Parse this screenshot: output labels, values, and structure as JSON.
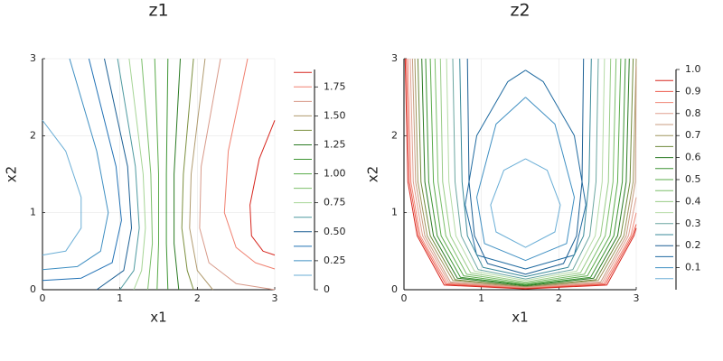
{
  "chart_data": [
    {
      "type": "contour",
      "title": "z1",
      "x_label": "x1",
      "y_label": "x2",
      "xlim": [
        0,
        3
      ],
      "ylim": [
        0,
        3
      ],
      "xticks": [
        0,
        1,
        2,
        3
      ],
      "yticks": [
        0,
        1,
        2,
        3
      ],
      "grid": true,
      "clim": [
        0,
        1.9
      ],
      "cticks": [
        0,
        {
          "value": 0.25,
          "label": "0.25"
        },
        {
          "value": 0.5,
          "label": "0.50"
        },
        {
          "value": 0.75,
          "label": "0.75"
        },
        {
          "value": 1,
          "label": "1.00"
        },
        {
          "value": 1.25,
          "label": "1.25"
        },
        {
          "value": 1.5,
          "label": "1.50"
        },
        {
          "value": 1.75,
          "label": "1.75"
        }
      ],
      "series": [
        {
          "level": 0.125,
          "color": "#6aaed6",
          "x": [
            0,
            0.3,
            0.5,
            0.5,
            0.3,
            0
          ],
          "y": [
            2.2,
            1.8,
            1.2,
            0.8,
            0.5,
            0.45
          ]
        },
        {
          "level": 0.25,
          "color": "#3f8fc2",
          "x": [
            0.35,
            0.7,
            0.85,
            0.75,
            0.45,
            0
          ],
          "y": [
            3,
            1.8,
            1,
            0.5,
            0.3,
            0.26
          ]
        },
        {
          "level": 0.375,
          "color": "#2171b5",
          "x": [
            0.6,
            0.95,
            1.02,
            0.9,
            0.5,
            0
          ],
          "y": [
            3,
            1.6,
            0.9,
            0.35,
            0.15,
            0.12
          ]
        },
        {
          "level": 0.5,
          "color": "#1b5f94",
          "x": [
            0.8,
            1.1,
            1.15,
            1.05,
            0.7
          ],
          "y": [
            3,
            1.6,
            0.8,
            0.25,
            0
          ]
        },
        {
          "level": 0.625,
          "color": "#4e9aa0",
          "x": [
            0.97,
            1.2,
            1.25,
            1.18,
            1.0
          ],
          "y": [
            3,
            1.6,
            0.8,
            0.25,
            0
          ]
        },
        {
          "level": 0.75,
          "color": "#a6d596",
          "x": [
            1.12,
            1.3,
            1.33,
            1.28,
            1.18
          ],
          "y": [
            3,
            1.5,
            0.8,
            0.25,
            0
          ]
        },
        {
          "level": 0.875,
          "color": "#7bbf6a",
          "x": [
            1.28,
            1.4,
            1.42,
            1.36
          ],
          "y": [
            3,
            1.5,
            0.6,
            0
          ]
        },
        {
          "level": 1.0,
          "color": "#5aab4a",
          "x": [
            1.45,
            1.5,
            1.5,
            1.48
          ],
          "y": [
            3,
            1.5,
            0.6,
            0
          ]
        },
        {
          "level": 1.125,
          "color": "#3d9433",
          "x": [
            1.62,
            1.6,
            1.6,
            1.62
          ],
          "y": [
            3,
            1.5,
            0.6,
            0
          ]
        },
        {
          "level": 1.25,
          "color": "#2a7a22",
          "x": [
            1.78,
            1.7,
            1.7,
            1.76
          ],
          "y": [
            3,
            1.5,
            0.6,
            0
          ]
        },
        {
          "level": 1.375,
          "color": "#7c8f3e",
          "x": [
            1.95,
            1.82,
            1.8,
            1.87,
            1.95
          ],
          "y": [
            3,
            1.5,
            0.8,
            0.25,
            0
          ]
        },
        {
          "level": 1.5,
          "color": "#b09a6e",
          "x": [
            2.1,
            1.92,
            1.9,
            2.0,
            2.2
          ],
          "y": [
            3,
            1.5,
            0.8,
            0.25,
            0
          ]
        },
        {
          "level": 1.625,
          "color": "#d89a8a",
          "x": [
            2.3,
            2.05,
            2.03,
            2.15,
            2.5,
            3
          ],
          "y": [
            3,
            1.6,
            0.8,
            0.35,
            0.08,
            0
          ]
        },
        {
          "level": 1.75,
          "color": "#f08070",
          "x": [
            2.65,
            2.4,
            2.35,
            2.5,
            2.75,
            3
          ],
          "y": [
            3,
            1.8,
            1,
            0.55,
            0.35,
            0.27
          ]
        },
        {
          "level": 1.875,
          "color": "#d7261e",
          "x": [
            3,
            2.8,
            2.68,
            2.7,
            2.85,
            3
          ],
          "y": [
            2.2,
            1.7,
            1.1,
            0.7,
            0.5,
            0.45
          ]
        }
      ]
    },
    {
      "type": "contour",
      "title": "z2",
      "x_label": "x1",
      "y_label": "x2",
      "xlim": [
        0,
        3
      ],
      "ylim": [
        0,
        3
      ],
      "xticks": [
        0,
        1,
        2,
        3
      ],
      "yticks": [
        0,
        1,
        2,
        3
      ],
      "grid": true,
      "clim": [
        0,
        1
      ],
      "cticks": [
        0.1,
        0.2,
        0.3,
        0.4,
        0.5,
        0.6,
        0.7,
        0.8,
        0.9,
        {
          "value": 1,
          "label": "1.0"
        }
      ],
      "series": [
        {
          "level": 0.05,
          "color": "#6aaed6",
          "x": [
            1.57,
            1.85,
            2.02,
            1.95,
            1.57,
            1.19,
            1.12,
            1.29,
            1.57
          ],
          "y": [
            1.7,
            1.55,
            1.1,
            0.75,
            0.55,
            0.75,
            1.1,
            1.55,
            1.7
          ]
        },
        {
          "level": 0.1,
          "color": "#3f8fc2",
          "x": [
            1.57,
            1.95,
            2.2,
            2.1,
            1.57,
            1.04,
            0.94,
            1.19,
            1.57
          ],
          "y": [
            2.5,
            2.15,
            1.2,
            0.6,
            0.38,
            0.6,
            1.2,
            2.15,
            2.5
          ]
        },
        {
          "level": 0.15,
          "color": "#1f6aa0",
          "x": [
            1.57,
            1.8,
            2.2,
            2.35,
            2.2,
            1.57,
            0.94,
            0.79,
            0.94,
            1.34,
            1.57
          ],
          "y": [
            2.85,
            2.7,
            2.0,
            1.1,
            0.45,
            0.27,
            0.45,
            1.1,
            2.0,
            2.7,
            2.85
          ]
        },
        {
          "level": 0.2,
          "color": "#1b5f94",
          "x": [
            0.82,
            0.84,
            0.91,
            1.08,
            1.57,
            2.06,
            2.23,
            2.3,
            2.32
          ],
          "y": [
            3,
            1.4,
            0.7,
            0.34,
            0.2,
            0.34,
            0.7,
            1.4,
            3
          ]
        },
        {
          "level": 0.25,
          "color": "#3a8a9a",
          "x": [
            0.72,
            0.75,
            0.82,
            1.02,
            1.57,
            2.12,
            2.32,
            2.39,
            2.42
          ],
          "y": [
            3,
            1.4,
            0.7,
            0.29,
            0.17,
            0.29,
            0.7,
            1.4,
            3
          ]
        },
        {
          "level": 0.3,
          "color": "#6aa6a0",
          "x": [
            0.63,
            0.66,
            0.74,
            0.96,
            1.57,
            2.18,
            2.4,
            2.48,
            2.51
          ],
          "y": [
            3,
            1.4,
            0.7,
            0.26,
            0.14,
            0.26,
            0.7,
            1.4,
            3
          ]
        },
        {
          "level": 0.35,
          "color": "#b5dba6",
          "x": [
            0.55,
            0.58,
            0.67,
            0.91,
            1.57,
            2.23,
            2.47,
            2.56,
            2.59
          ],
          "y": [
            3,
            1.4,
            0.7,
            0.24,
            0.12,
            0.24,
            0.7,
            1.4,
            3
          ]
        },
        {
          "level": 0.4,
          "color": "#98cc86",
          "x": [
            0.47,
            0.5,
            0.6,
            0.86,
            1.57,
            2.28,
            2.54,
            2.64,
            2.67
          ],
          "y": [
            3,
            1.4,
            0.7,
            0.22,
            0.1,
            0.22,
            0.7,
            1.4,
            3
          ]
        },
        {
          "level": 0.45,
          "color": "#7bbf6a",
          "x": [
            0.4,
            0.44,
            0.54,
            0.81,
            1.57,
            2.33,
            2.6,
            2.7,
            2.74
          ],
          "y": [
            3,
            1.4,
            0.7,
            0.2,
            0.085,
            0.2,
            0.7,
            1.4,
            3
          ]
        },
        {
          "level": 0.5,
          "color": "#5aab4a",
          "x": [
            0.34,
            0.38,
            0.48,
            0.77,
            1.57,
            2.37,
            2.66,
            2.76,
            2.8
          ],
          "y": [
            3,
            1.4,
            0.7,
            0.18,
            0.07,
            0.18,
            0.7,
            1.4,
            3
          ]
        },
        {
          "level": 0.55,
          "color": "#3d9433",
          "x": [
            0.28,
            0.32,
            0.43,
            0.73,
            1.57,
            2.41,
            2.71,
            2.82,
            2.86
          ],
          "y": [
            3,
            1.4,
            0.7,
            0.16,
            0.06,
            0.16,
            0.7,
            1.4,
            3
          ]
        },
        {
          "level": 0.6,
          "color": "#2a7a22",
          "x": [
            0.23,
            0.27,
            0.38,
            0.69,
            1.57,
            2.45,
            2.76,
            2.87,
            2.91
          ],
          "y": [
            3,
            1.4,
            0.7,
            0.15,
            0.05,
            0.15,
            0.7,
            1.4,
            3
          ]
        },
        {
          "level": 0.65,
          "color": "#6e8a3a",
          "x": [
            0.18,
            0.22,
            0.34,
            0.66,
            1.57,
            2.48,
            2.8,
            2.92,
            2.96
          ],
          "y": [
            3,
            1.4,
            0.7,
            0.13,
            0.04,
            0.13,
            0.7,
            1.4,
            3
          ]
        },
        {
          "level": 0.7,
          "color": "#a0965e",
          "x": [
            0.14,
            0.18,
            0.3,
            0.63,
            1.57,
            2.51,
            2.84,
            2.96,
            3
          ],
          "y": [
            3,
            1.4,
            0.7,
            0.12,
            0.035,
            0.12,
            0.7,
            1.4,
            3
          ]
        },
        {
          "level": 0.75,
          "color": "#c89c80",
          "x": [
            0.11,
            0.15,
            0.27,
            0.6,
            1.57,
            2.54,
            2.87,
            2.99,
            3
          ],
          "y": [
            3,
            1.4,
            0.7,
            0.1,
            0.03,
            0.1,
            0.7,
            1.4,
            2.9
          ]
        },
        {
          "level": 0.8,
          "color": "#e0a090",
          "x": [
            0.08,
            0.12,
            0.24,
            0.58,
            1.57,
            2.56,
            2.9,
            3
          ],
          "y": [
            3,
            1.4,
            0.7,
            0.09,
            0.025,
            0.09,
            0.7,
            1.2
          ]
        },
        {
          "level": 0.85,
          "color": "#f08a7a",
          "x": [
            0.05,
            0.09,
            0.21,
            0.56,
            1.57,
            2.58,
            2.93,
            3
          ],
          "y": [
            3,
            1.4,
            0.7,
            0.08,
            0.02,
            0.08,
            0.7,
            1.0
          ]
        },
        {
          "level": 0.9,
          "color": "#ec5a4c",
          "x": [
            0.03,
            0.07,
            0.19,
            0.54,
            1.57,
            2.6,
            2.95,
            3
          ],
          "y": [
            3,
            1.4,
            0.7,
            0.07,
            0.015,
            0.07,
            0.7,
            0.85
          ]
        },
        {
          "level": 0.95,
          "color": "#d7261e",
          "x": [
            0.015,
            0.05,
            0.17,
            0.52,
            1.57,
            2.62,
            2.97,
            3
          ],
          "y": [
            3,
            1.4,
            0.7,
            0.06,
            0.01,
            0.06,
            0.7,
            0.8
          ]
        }
      ]
    }
  ]
}
